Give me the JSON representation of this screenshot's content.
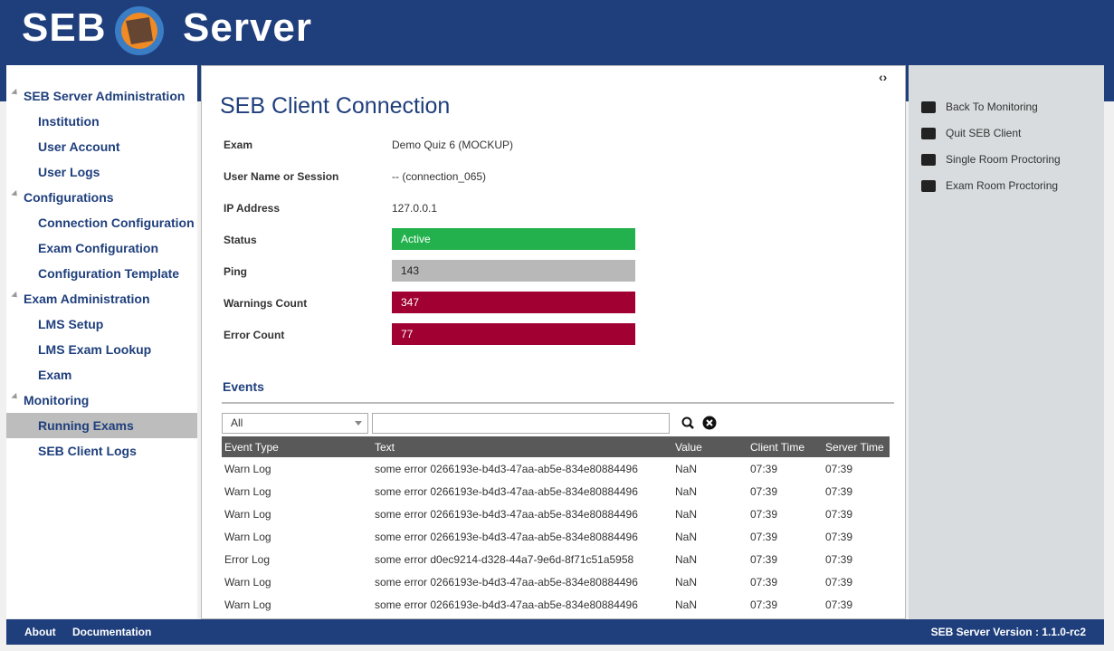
{
  "header": {
    "title_left": "SEB",
    "title_right": "Server"
  },
  "nav": [
    {
      "label": "SEB Server Administration",
      "items": [
        "Institution",
        "User Account",
        "User Logs"
      ]
    },
    {
      "label": "Configurations",
      "items": [
        "Connection Configuration",
        "Exam Configuration",
        "Configuration Template"
      ]
    },
    {
      "label": "Exam Administration",
      "items": [
        "LMS Setup",
        "LMS Exam Lookup",
        "Exam"
      ]
    },
    {
      "label": "Monitoring",
      "items": [
        "Running Exams",
        "SEB Client Logs"
      ]
    }
  ],
  "main": {
    "title": "SEB Client Connection",
    "fields": [
      {
        "label": "Exam",
        "value": "Demo Quiz 6 (MOCKUP)"
      },
      {
        "label": "User Name or Session",
        "value": "-- (connection_065)"
      },
      {
        "label": "IP Address",
        "value": "127.0.0.1"
      },
      {
        "label": "Status",
        "value": "Active",
        "color": "#22b14c"
      },
      {
        "label": "Ping",
        "value": "143",
        "color": "#b8b8b8"
      },
      {
        "label": "Warnings Count",
        "value": "347",
        "color": "#a00032"
      },
      {
        "label": "Error Count",
        "value": "77",
        "color": "#a00032"
      }
    ],
    "events": {
      "title": "Events",
      "filter": "All",
      "columns": [
        "Event Type",
        "Text",
        "Value",
        "Client Time",
        "Server Time"
      ],
      "rows": [
        [
          "Warn Log",
          "some error 0266193e-b4d3-47aa-ab5e-834e80884496",
          "NaN",
          "07:39",
          "07:39"
        ],
        [
          "Warn Log",
          "some error 0266193e-b4d3-47aa-ab5e-834e80884496",
          "NaN",
          "07:39",
          "07:39"
        ],
        [
          "Warn Log",
          "some error 0266193e-b4d3-47aa-ab5e-834e80884496",
          "NaN",
          "07:39",
          "07:39"
        ],
        [
          "Warn Log",
          "some error 0266193e-b4d3-47aa-ab5e-834e80884496",
          "NaN",
          "07:39",
          "07:39"
        ],
        [
          "Error Log",
          "some error d0ec9214-d328-44a7-9e6d-8f71c51a5958",
          "NaN",
          "07:39",
          "07:39"
        ],
        [
          "Warn Log",
          "some error 0266193e-b4d3-47aa-ab5e-834e80884496",
          "NaN",
          "07:39",
          "07:39"
        ],
        [
          "Warn Log",
          "some error 0266193e-b4d3-47aa-ab5e-834e80884496",
          "NaN",
          "07:39",
          "07:39"
        ]
      ]
    }
  },
  "actions": [
    "Back To Monitoring",
    "Quit SEB Client",
    "Single Room Proctoring",
    "Exam Room Proctoring"
  ],
  "footer": {
    "links": [
      "About",
      "Documentation"
    ],
    "version": "SEB Server Version : 1.1.0-rc2"
  }
}
